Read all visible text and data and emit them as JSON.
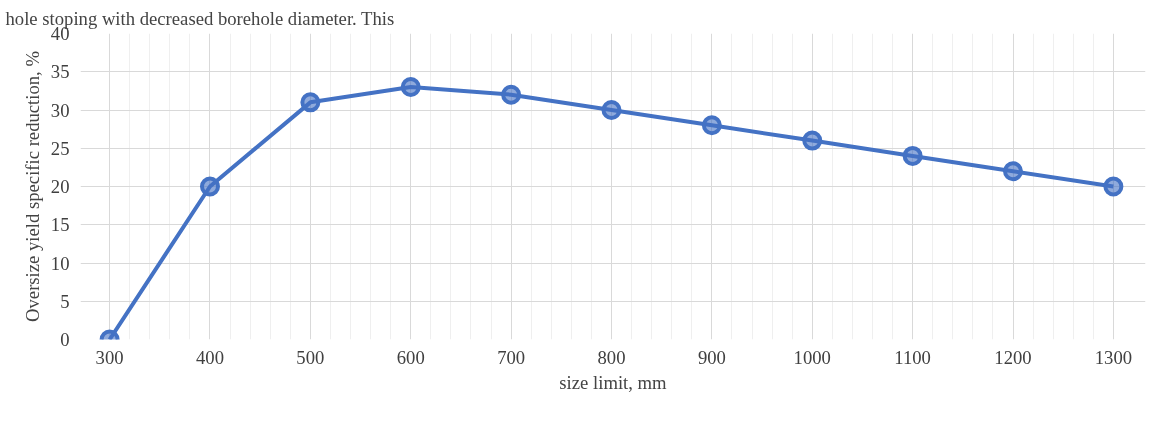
{
  "chart_data": {
    "type": "line",
    "xlabel": "size limit, mm",
    "ylabel": "Oversize yield specific reduction, %",
    "annotations": [
      "hole stoping with decreased borehole diameter. This"
    ],
    "x": [
      300,
      400,
      500,
      600,
      700,
      800,
      900,
      1000,
      1100,
      1200,
      1300
    ],
    "series": [
      {
        "color": "#4472c4",
        "values": [
          0,
          20,
          31,
          33,
          32,
          30,
          28,
          26,
          24,
          22,
          20
        ]
      }
    ],
    "xlim": [
      271,
      1332
    ],
    "ylim": [
      0,
      40
    ],
    "xticks": [
      300,
      400,
      500,
      600,
      700,
      800,
      900,
      1000,
      1100,
      1200,
      1300
    ],
    "yticks": [
      0,
      5,
      10,
      15,
      20,
      25,
      30,
      35,
      40
    ],
    "grid": true,
    "marker": "circle",
    "line_style": "solid"
  }
}
